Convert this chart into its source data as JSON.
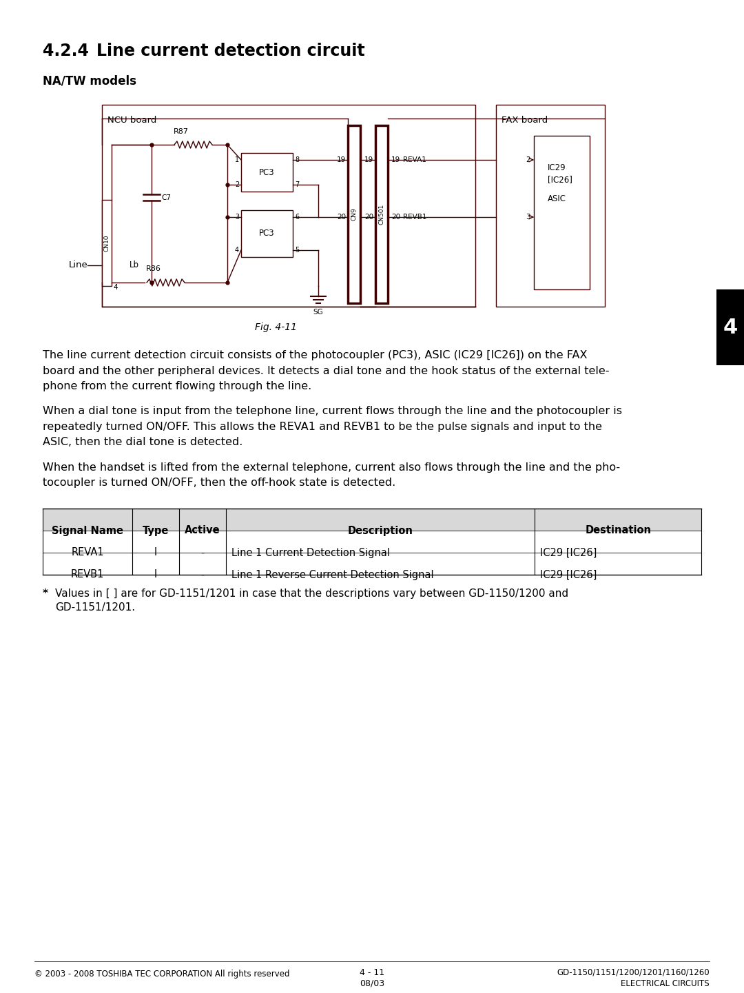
{
  "title_num": "4.2.4",
  "title_text": "Line current detection circuit",
  "subtitle": "NA/TW models",
  "fig_caption": "Fig. 4-11",
  "body_text": [
    "The line current detection circuit consists of the photocoupler (PC3), ASIC (IC29 [IC26]) on the FAX board and the other peripheral devices. It detects a dial tone and the hook status of the external tele-phone from the current flowing through the line.",
    "When a dial tone is input from the telephone line, current flows through the line and the photocoupler is repeatedly turned ON/OFF. This allows the REVA1 and REVB1 to be the pulse signals and input to the ASIC, then the dial tone is detected.",
    "When the handset is lifted from the external telephone, current also flows through the line and the pho-tocoupler is turned ON/OFF, then the off-hook state is detected."
  ],
  "table_headers": [
    "Signal Name",
    "Type",
    "Active",
    "Description",
    "Destination"
  ],
  "table_rows": [
    [
      "REVA1",
      "I",
      "-",
      "Line 1 Current Detection Signal",
      "IC29 [IC26]"
    ],
    [
      "REVB1",
      "I",
      "-",
      "Line 1 Reverse Current Detection Signal",
      "IC29 [IC26]"
    ]
  ],
  "footnote_star": "*",
  "footnote_line1": "   Values in [ ] are for GD-1151/1201 in case that the descriptions vary between GD-1150/1200 and",
  "footnote_line2": "   GD-1151/1201.",
  "footer_left": "© 2003 - 2008 TOSHIBA TEC CORPORATION All rights reserved",
  "footer_page": "4 - 11",
  "footer_date": "08/03",
  "footer_right1": "GD-1150/1151/1200/1201/1160/1260",
  "footer_right2": "ELECTRICAL CIRCUITS",
  "bg_color": "#ffffff",
  "text_color": "#000000",
  "circuit_color": "#3d0000",
  "tab_color": "#000000"
}
